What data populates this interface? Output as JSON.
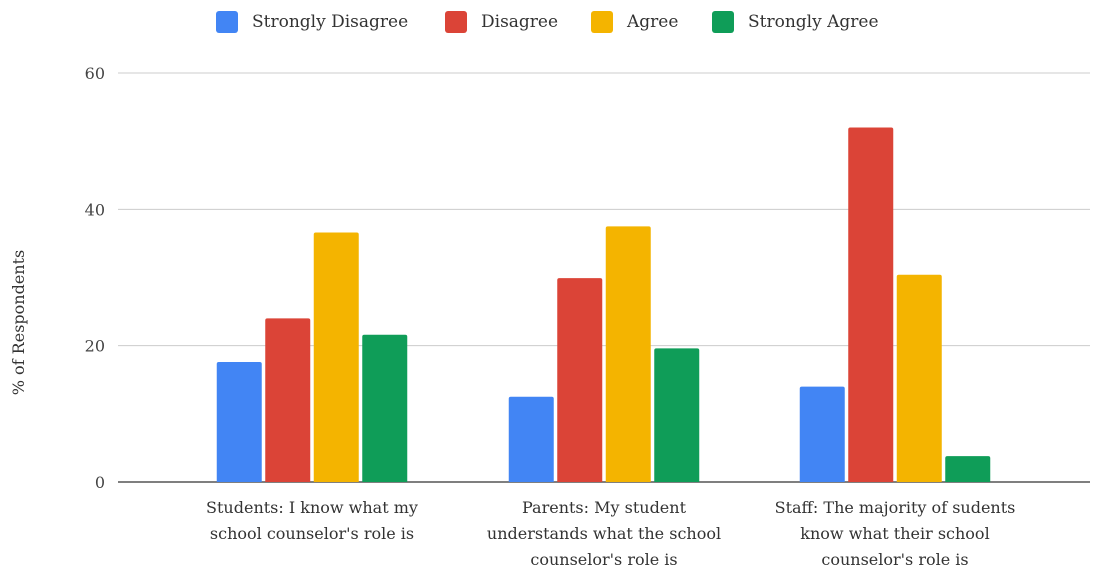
{
  "chart_data": {
    "type": "bar",
    "categories": [
      [
        "Students: I know what my",
        "school counselor's role is"
      ],
      [
        "Parents: My student",
        "understands what the school",
        "counselor's role is"
      ],
      [
        "Staff: The majority of sudents",
        "know what their school",
        "counselor's role is"
      ]
    ],
    "series": [
      {
        "name": "Strongly Disagree",
        "color": "#4285f4",
        "values": [
          17.6,
          12.5,
          14.0
        ]
      },
      {
        "name": "Disagree",
        "color": "#db4437",
        "values": [
          24.0,
          29.9,
          52.0
        ]
      },
      {
        "name": "Agree",
        "color": "#f4b400",
        "values": [
          36.6,
          37.5,
          30.4
        ]
      },
      {
        "name": "Strongly Agree",
        "color": "#0f9d58",
        "values": [
          21.6,
          19.6,
          3.8
        ]
      }
    ],
    "ylabel": "% of Respondents",
    "ylim": [
      0,
      60
    ],
    "yticks": [
      0,
      20,
      40,
      60
    ],
    "grid": true,
    "legend_position": "top"
  }
}
